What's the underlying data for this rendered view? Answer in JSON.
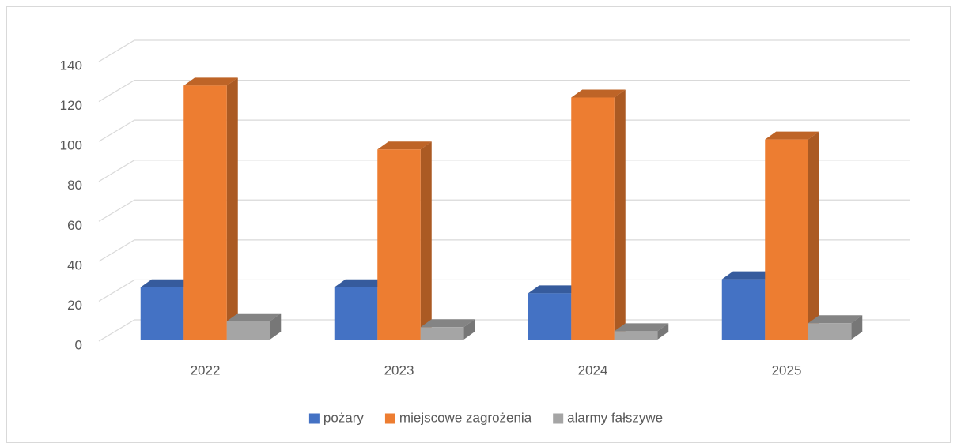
{
  "chart_data": {
    "type": "bar3d",
    "categories": [
      "2022",
      "2023",
      "2024",
      "2025"
    ],
    "series": [
      {
        "name": "pożary",
        "color": "#4472c4",
        "values": [
          27,
          27,
          24,
          31
        ]
      },
      {
        "name": "miejscowe zagrożenia",
        "color": "#ed7d31",
        "values": [
          128,
          96,
          122,
          101
        ]
      },
      {
        "name": "alarmy fałszywe",
        "color": "#a5a5a5",
        "values": [
          10,
          7,
          5,
          9
        ]
      }
    ],
    "ylim": [
      0,
      140
    ],
    "yticks": [
      0,
      20,
      40,
      60,
      80,
      100,
      120,
      140
    ],
    "grid": true,
    "legend": "bottom"
  }
}
